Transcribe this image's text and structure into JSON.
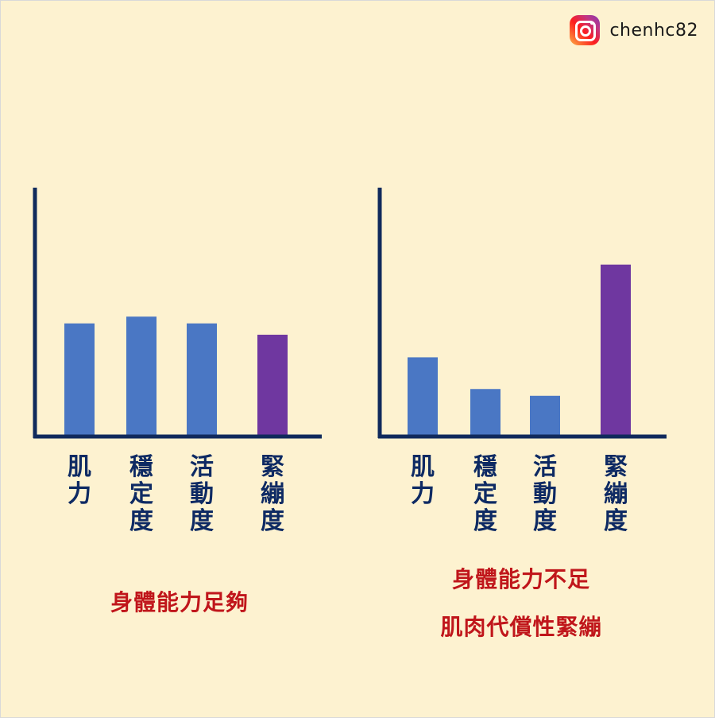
{
  "brand": {
    "icon": "instagram-icon",
    "handle": "chenhc82"
  },
  "colors": {
    "background": "#fdf2d0",
    "axis": "#102a5c",
    "bar_blue": "#4a77c4",
    "bar_purple": "#6f37a0",
    "label": "#0e2a63",
    "caption": "#c0161b"
  },
  "chart_data": [
    {
      "type": "bar",
      "categories": [
        "肌力",
        "穩定度",
        "活動度",
        "緊繃度"
      ],
      "values": [
        5.0,
        5.3,
        5.0,
        4.5
      ],
      "bar_colors": [
        "#4a77c4",
        "#4a77c4",
        "#4a77c4",
        "#6f37a0"
      ],
      "ylim": [
        0,
        11
      ],
      "grid": false,
      "caption": [
        "身體能力足夠"
      ]
    },
    {
      "type": "bar",
      "categories": [
        "肌力",
        "穩定度",
        "活動度",
        "緊繃度"
      ],
      "values": [
        3.5,
        2.1,
        1.8,
        7.6
      ],
      "bar_colors": [
        "#4a77c4",
        "#4a77c4",
        "#4a77c4",
        "#6f37a0"
      ],
      "ylim": [
        0,
        11
      ],
      "grid": false,
      "caption": [
        "身體能力不足",
        "肌肉代償性緊繃"
      ]
    }
  ]
}
